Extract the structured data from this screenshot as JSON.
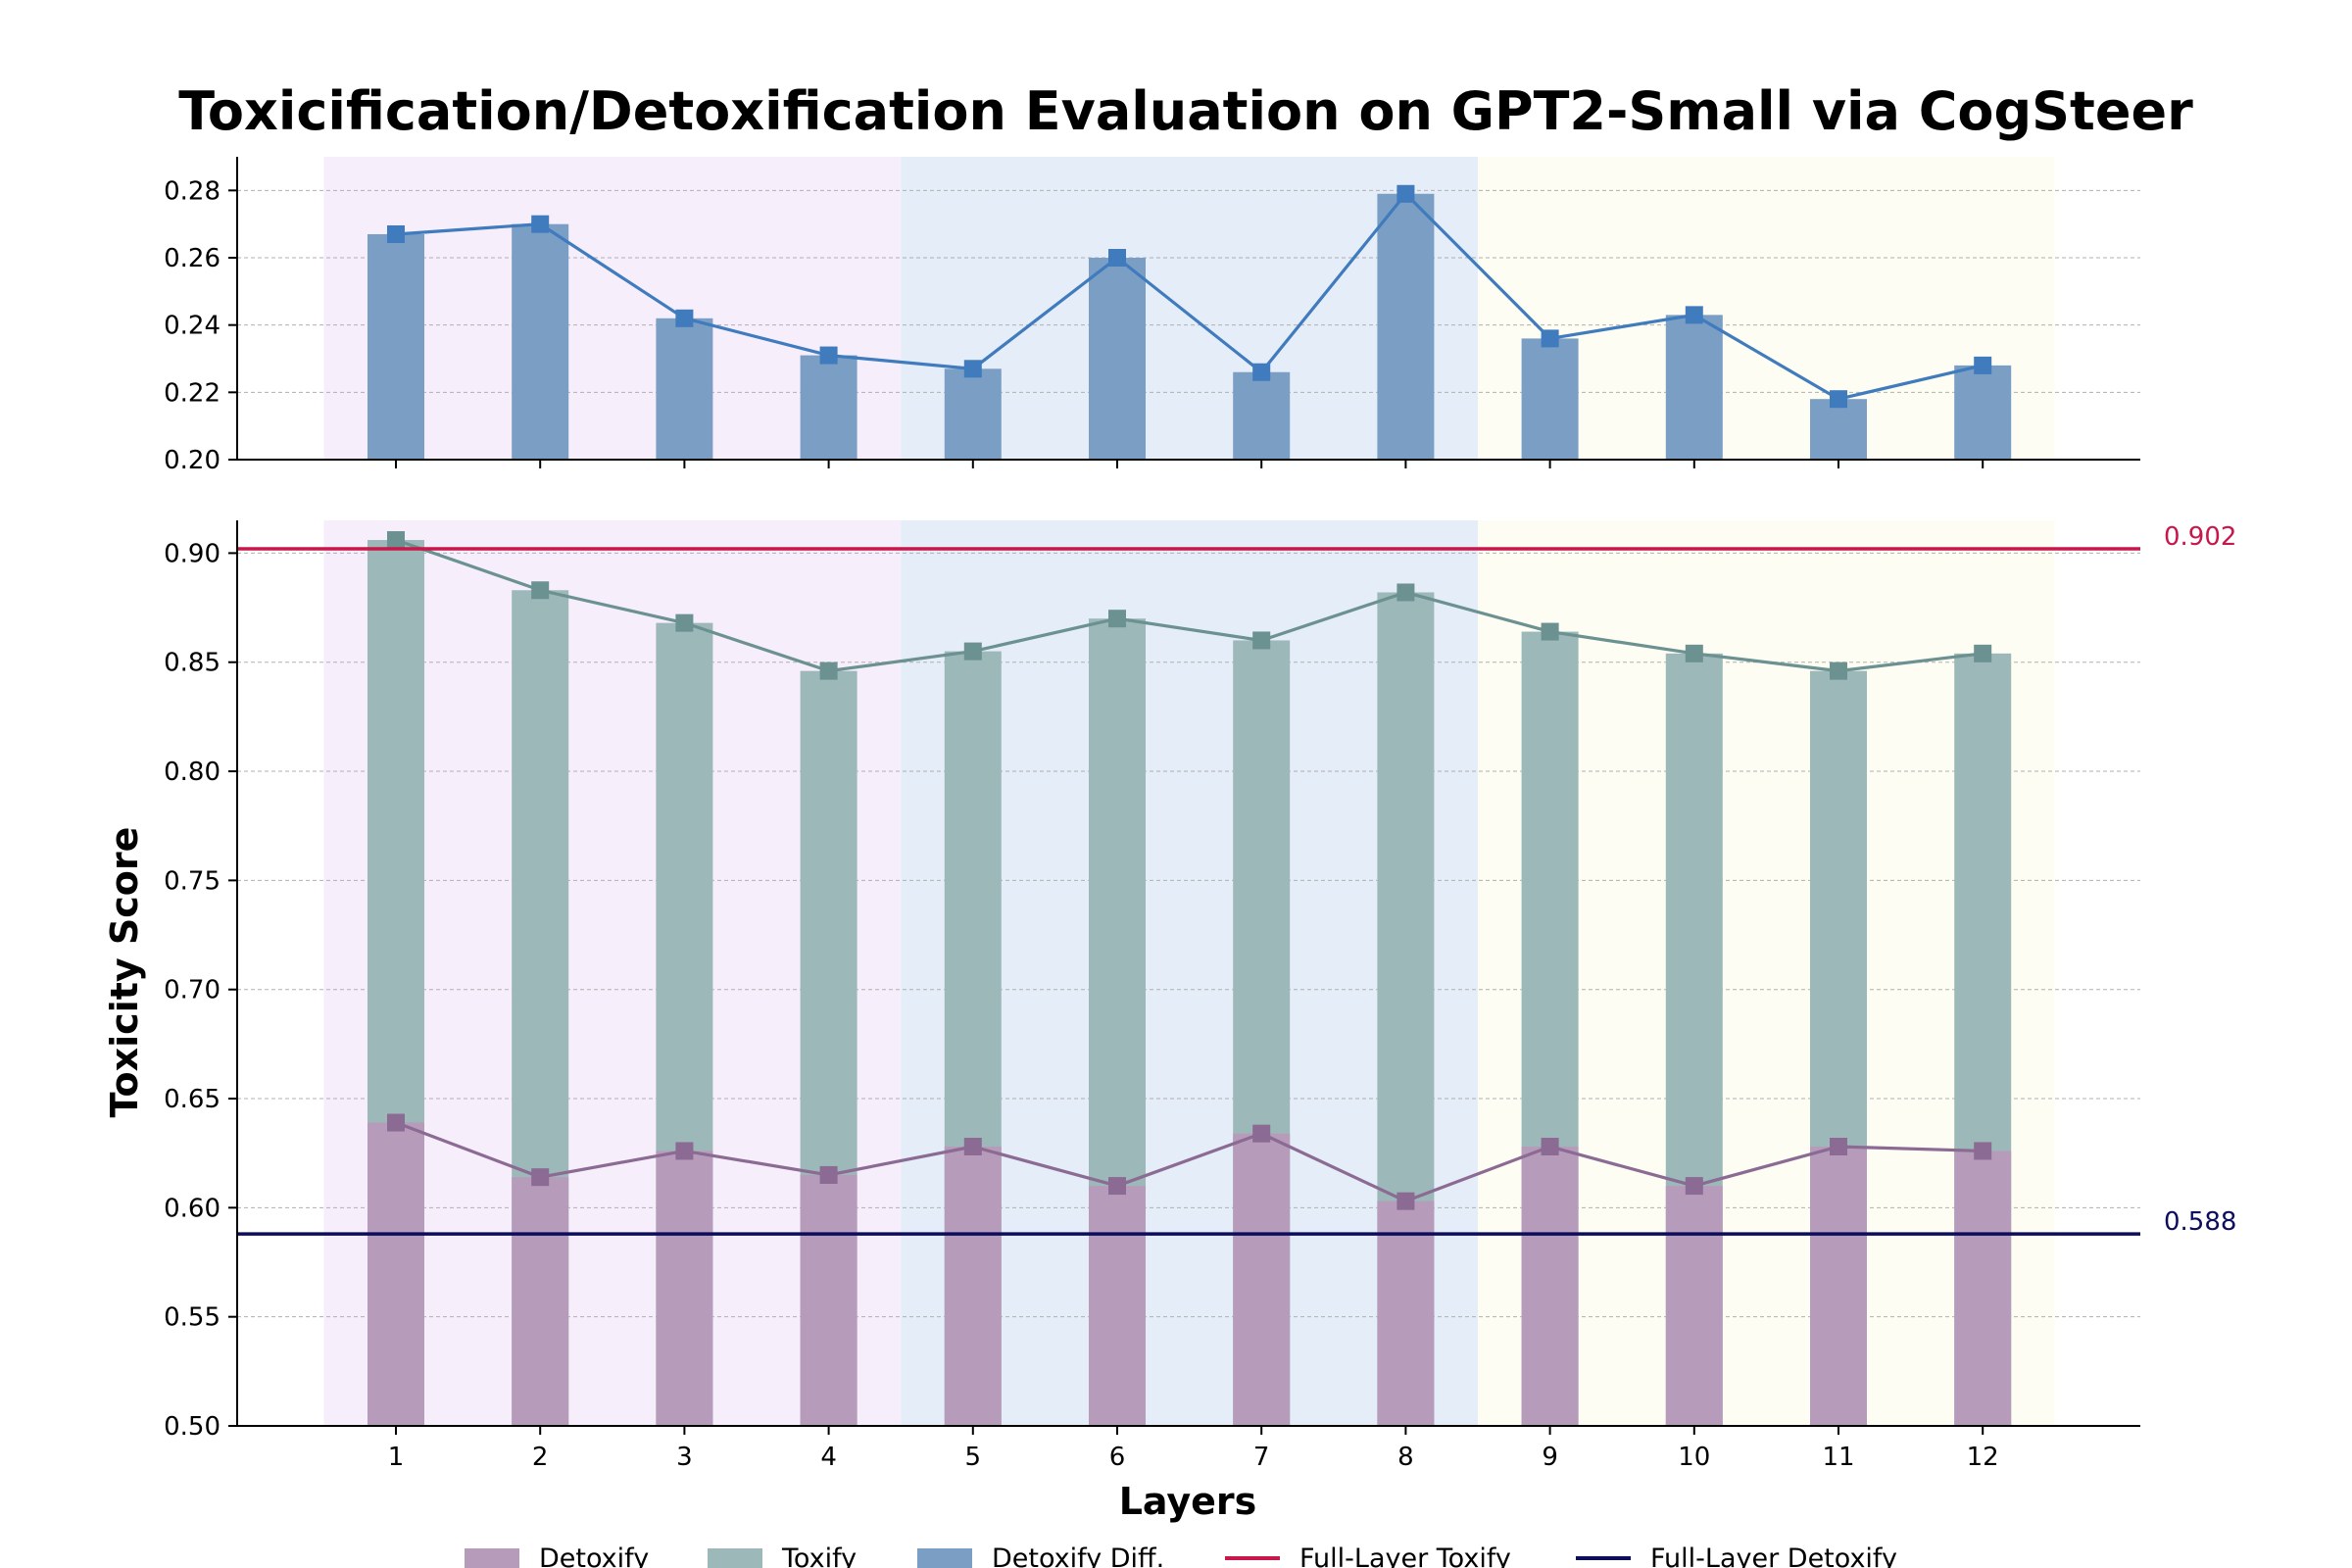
{
  "chart_data": {
    "type": "bar",
    "title": "Toxicification/Detoxification Evaluation on GPT2-Small via CogSteer",
    "xlabel": "Layers",
    "ylabel": "Toxicity Score",
    "categories": [
      "1",
      "2",
      "3",
      "4",
      "5",
      "6",
      "7",
      "8",
      "9",
      "10",
      "11",
      "12"
    ],
    "panels": [
      {
        "name": "top",
        "ylim": [
          0.2,
          0.29
        ],
        "yticks": [
          "0.20",
          "0.22",
          "0.24",
          "0.26",
          "0.28"
        ],
        "series": [
          {
            "name": "Detoxify Diff.",
            "kind": "bar+line",
            "values": [
              0.267,
              0.27,
              0.242,
              0.231,
              0.227,
              0.26,
              0.226,
              0.279,
              0.236,
              0.243,
              0.218,
              0.228
            ]
          }
        ]
      },
      {
        "name": "bottom",
        "ylim": [
          0.5,
          0.915
        ],
        "yticks": [
          "0.50",
          "0.55",
          "0.60",
          "0.65",
          "0.70",
          "0.75",
          "0.80",
          "0.85",
          "0.90"
        ],
        "series": [
          {
            "name": "Toxify",
            "kind": "bar+line",
            "values": [
              0.906,
              0.883,
              0.868,
              0.846,
              0.855,
              0.87,
              0.86,
              0.882,
              0.864,
              0.854,
              0.846,
              0.854
            ]
          },
          {
            "name": "Detoxify",
            "kind": "bar+line",
            "values": [
              0.639,
              0.614,
              0.626,
              0.615,
              0.628,
              0.61,
              0.634,
              0.603,
              0.628,
              0.61,
              0.628,
              0.626
            ]
          }
        ],
        "reference_lines": [
          {
            "name": "Full-Layer Toxify",
            "value": 0.902,
            "label": "0.902",
            "color": "#c8174a"
          },
          {
            "name": "Full-Layer Detoxify",
            "value": 0.588,
            "label": "0.588",
            "color": "#0d0d5e"
          }
        ]
      }
    ],
    "shaded_regions": [
      {
        "from_layer": 1,
        "to_layer": 4,
        "color": "#f7eefc"
      },
      {
        "from_layer": 5,
        "to_layer": 8,
        "color": "#e5edf8"
      },
      {
        "from_layer": 9,
        "to_layer": 12,
        "color": "#fdfdf3"
      }
    ],
    "grid": "horizontal dashed",
    "legend_position": "bottom-center",
    "legend": [
      {
        "label": "Detoxify",
        "symbol": "patch",
        "color": "#b69cba"
      },
      {
        "label": "Toxify",
        "symbol": "patch",
        "color": "#9db8b8"
      },
      {
        "label": "Detoxify Diff.",
        "symbol": "patch",
        "color": "#7b9ec5"
      },
      {
        "label": "Full-Layer Toxify",
        "symbol": "line",
        "color": "#c8174a"
      },
      {
        "label": "Full-Layer Detoxify",
        "symbol": "line",
        "color": "#0d0d5e"
      }
    ],
    "colors": {
      "detoxify_bar": "#b69cba",
      "detoxify_line": "#8b6a93",
      "toxify_bar": "#9db8b8",
      "toxify_line": "#6b9191",
      "diff_bar": "#7b9ec5",
      "diff_line": "#3f7bbd"
    }
  }
}
